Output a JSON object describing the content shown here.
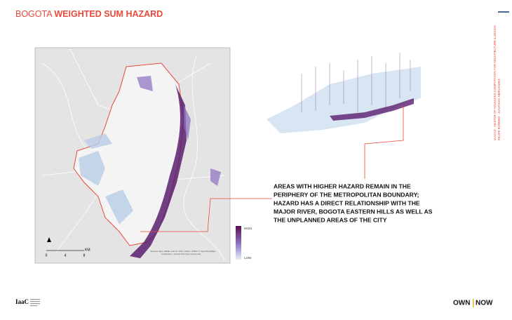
{
  "header": {
    "title_prefix": "BOGOTA",
    "title_main": "WEIGHTED SUM HAZARD"
  },
  "side": {
    "line1": "IAACAD - MASTER OF ADVANCED COMPUTATION FOR ARCHITECTURE & DESIGN",
    "line2": "FELIPE ROMERO · JONATHAN HERNANDEZ"
  },
  "map": {
    "legend_high": "HIGH",
    "legend_low": "LOW",
    "scale": [
      "0",
      "4",
      "8"
    ],
    "scale_unit": "KM",
    "attribution": [
      "Sources: Esri, HERE, Garmin, FAO, NOAA, USGS, © OpenStreetMap",
      "contributors, and the GIS User Community"
    ]
  },
  "body": {
    "lines": [
      "AREAS WITH HIGHER HAZARD REMAIN IN THE",
      "PERIPHERY OF THE METROPOLITAN BOUNDARY;",
      "HAZARD HAS A DIRECT RELATIONSHIP WITH THE",
      "MAJOR RIVER, BOGOTA EASTERN HILLS AS WELL AS",
      "THE UNPLANNED AREAS OF THE CITY"
    ]
  },
  "footer": {
    "logo": "IaaC",
    "brand_left": "OWN",
    "brand_right": "NOW"
  }
}
